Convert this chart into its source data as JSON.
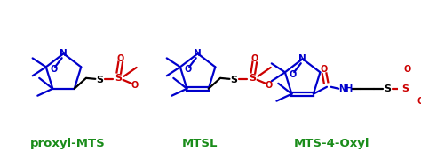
{
  "background_color": "#ffffff",
  "label_color": "#1a8c1a",
  "label_fontsize": 9.5,
  "labels": [
    "proxyl-MTS",
    "MTSL",
    "MTS-4-Oxyl"
  ],
  "blue": "#0000cc",
  "red": "#cc0000",
  "black": "#000000",
  "figsize": [
    4.74,
    1.89
  ],
  "dpi": 100,
  "xmax": 474,
  "ymax": 189
}
